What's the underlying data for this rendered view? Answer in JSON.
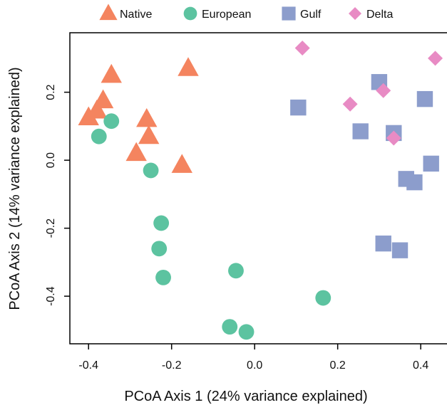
{
  "chart_data": {
    "type": "scatter",
    "title": "",
    "xlabel": "PCoA Axis 1 (24% variance explained)",
    "ylabel": "PCoA Axis 2 (14% variance explained)",
    "xlim": [
      -0.445,
      0.465
    ],
    "ylim": [
      -0.54,
      0.375
    ],
    "xticks": [
      -0.4,
      -0.2,
      0.0,
      0.2,
      0.4
    ],
    "xtick_labels": [
      "-0.4",
      "-0.2",
      "0.0",
      "0.2",
      "0.4"
    ],
    "yticks": [
      -0.4,
      -0.2,
      0.0,
      0.2
    ],
    "ytick_labels": [
      "-0.4",
      "-0.2",
      "0.0",
      "0.2"
    ],
    "grid": false,
    "legend_position": "top",
    "series": [
      {
        "name": "Native",
        "marker": "triangle",
        "color": "#F4845F",
        "points": [
          [
            -0.4,
            0.125
          ],
          [
            -0.38,
            0.145
          ],
          [
            -0.365,
            0.175
          ],
          [
            -0.345,
            0.25
          ],
          [
            -0.285,
            0.02
          ],
          [
            -0.26,
            0.12
          ],
          [
            -0.255,
            0.07
          ],
          [
            -0.175,
            -0.015
          ],
          [
            -0.16,
            0.27
          ]
        ]
      },
      {
        "name": "European",
        "marker": "circle",
        "color": "#5CC3A0",
        "points": [
          [
            -0.375,
            0.07
          ],
          [
            -0.345,
            0.115
          ],
          [
            -0.25,
            -0.03
          ],
          [
            -0.225,
            -0.185
          ],
          [
            -0.23,
            -0.26
          ],
          [
            -0.22,
            -0.345
          ],
          [
            -0.06,
            -0.49
          ],
          [
            -0.045,
            -0.325
          ],
          [
            -0.02,
            -0.505
          ],
          [
            0.165,
            -0.405
          ]
        ]
      },
      {
        "name": "Gulf",
        "marker": "square",
        "color": "#8C9DCC",
        "points": [
          [
            0.105,
            0.155
          ],
          [
            0.255,
            0.085
          ],
          [
            0.3,
            0.23
          ],
          [
            0.335,
            0.08
          ],
          [
            0.31,
            -0.245
          ],
          [
            0.35,
            -0.265
          ],
          [
            0.365,
            -0.055
          ],
          [
            0.385,
            -0.065
          ],
          [
            0.41,
            0.18
          ],
          [
            0.425,
            -0.01
          ]
        ]
      },
      {
        "name": "Delta",
        "marker": "diamond",
        "color": "#E88BC4",
        "points": [
          [
            0.115,
            0.33
          ],
          [
            0.23,
            0.165
          ],
          [
            0.31,
            0.205
          ],
          [
            0.335,
            0.065
          ],
          [
            0.435,
            0.3
          ]
        ]
      }
    ]
  }
}
